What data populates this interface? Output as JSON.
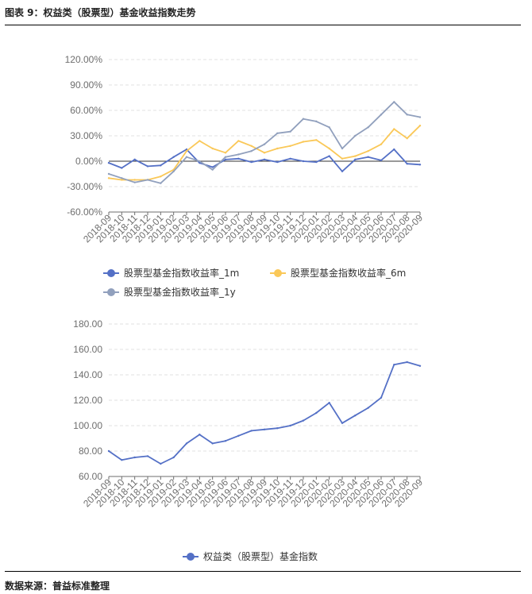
{
  "figure": {
    "title": "图表 9：权益类（股票型）基金收益指数走势",
    "source": "数据来源：普益标准整理"
  },
  "chart_data": [
    {
      "type": "line",
      "title": "",
      "x": [
        "2018-09",
        "2018-10",
        "2018-11",
        "2018-12",
        "2019-01",
        "2019-02",
        "2019-03",
        "2019-04",
        "2019-05",
        "2019-06",
        "2019-07",
        "2019-08",
        "2019-09",
        "2019-10",
        "2019-11",
        "2019-12",
        "2020-01",
        "2020-02",
        "2020-03",
        "2020-04",
        "2020-05",
        "2020-06",
        "2020-07",
        "2020-08",
        "2020-09"
      ],
      "ylim": [
        -60,
        120
      ],
      "yticks": [
        "-60.00%",
        "-30.00%",
        "0.00%",
        "30.00%",
        "60.00%",
        "90.00%",
        "120.00%"
      ],
      "zero_line": true,
      "grid": "horizontal-dashed",
      "legend_position": "bottom",
      "series": [
        {
          "name": "股票型基金指数收益率_1m",
          "color": "#5470c6",
          "values": [
            -2,
            -8,
            2,
            -6,
            -5,
            5,
            14,
            -2,
            -7,
            2,
            3,
            -1,
            2,
            -1,
            3,
            0,
            -1,
            6,
            -12,
            2,
            5,
            1,
            14,
            -3,
            -4
          ]
        },
        {
          "name": "股票型基金指数收益率_6m",
          "color": "#fac858",
          "values": [
            -20,
            -22,
            -22,
            -22,
            -18,
            -10,
            12,
            24,
            15,
            10,
            24,
            18,
            10,
            15,
            18,
            23,
            25,
            15,
            3,
            6,
            12,
            20,
            38,
            27,
            42
          ]
        },
        {
          "name": "股票型基金指数收益率_1y",
          "color": "#91a0bd",
          "values": [
            -15,
            -20,
            -25,
            -22,
            -26,
            -12,
            5,
            0,
            -10,
            5,
            8,
            12,
            20,
            33,
            35,
            50,
            47,
            40,
            15,
            30,
            40,
            55,
            70,
            55,
            52
          ]
        }
      ]
    },
    {
      "type": "line",
      "title": "",
      "x": [
        "2018-09",
        "2018-10",
        "2018-11",
        "2018-12",
        "2019-01",
        "2019-02",
        "2019-03",
        "2019-04",
        "2019-05",
        "2019-06",
        "2019-07",
        "2019-08",
        "2019-09",
        "2019-10",
        "2019-11",
        "2019-12",
        "2020-01",
        "2020-02",
        "2020-03",
        "2020-04",
        "2020-05",
        "2020-06",
        "2020-07",
        "2020-08",
        "2020-09"
      ],
      "ylim": [
        60,
        180
      ],
      "yticks": [
        "60.00",
        "80.00",
        "100.00",
        "120.00",
        "140.00",
        "160.00",
        "180.00"
      ],
      "grid": "horizontal-dashed",
      "legend_position": "bottom",
      "series": [
        {
          "name": "权益类（股票型）基金指数",
          "color": "#5470c6",
          "values": [
            80,
            73,
            75,
            76,
            70,
            75,
            86,
            93,
            86,
            88,
            92,
            96,
            97,
            98,
            100,
            104,
            110,
            118,
            102,
            108,
            114,
            122,
            148,
            150,
            147
          ]
        }
      ]
    }
  ]
}
